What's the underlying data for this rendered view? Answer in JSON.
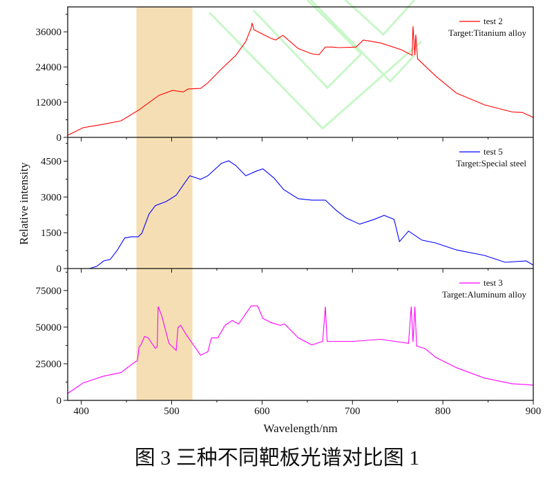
{
  "caption": "图 3  三种不同靶板光谱对比图 1",
  "chart_data": [
    {
      "type": "line",
      "ylim": [
        0,
        44500
      ],
      "yticks": [
        0,
        12000,
        24000,
        36000
      ],
      "legend": {
        "placement": "top-right",
        "label": "test 2",
        "note": "Target:Titanium alloy"
      },
      "color": "#ff0000",
      "series": [
        {
          "name": "test 2",
          "x": [
            385,
            402,
            425,
            444,
            463,
            486,
            501,
            513,
            518,
            532,
            540,
            555,
            571,
            582,
            588,
            589,
            591,
            609,
            615,
            623,
            640,
            655,
            663,
            670,
            677,
            685,
            704,
            712,
            731,
            754,
            766,
            767,
            769,
            770,
            772,
            792,
            815,
            846,
            876,
            888,
            900
          ],
          "y": [
            700,
            3300,
            4500,
            5650,
            9200,
            14350,
            16000,
            15500,
            16500,
            16700,
            18600,
            23300,
            28000,
            32700,
            37400,
            39000,
            36700,
            33900,
            33200,
            34800,
            30300,
            28500,
            28200,
            30800,
            30800,
            30600,
            30800,
            33200,
            32200,
            29900,
            28000,
            37900,
            28000,
            35000,
            26800,
            20900,
            15100,
            11100,
            8700,
            8500,
            6800
          ]
        }
      ]
    },
    {
      "type": "line",
      "ylim": [
        0,
        5500
      ],
      "yticks": [
        0,
        1500,
        3000,
        4500
      ],
      "legend": {
        "placement": "top-right",
        "label": "test 5",
        "note": "Target:Special steel"
      },
      "color": "#0000ff",
      "series": [
        {
          "name": "test 5",
          "x": [
            385,
            409,
            417,
            425,
            432,
            440,
            448,
            455,
            463,
            467,
            475,
            482,
            494,
            505,
            513,
            520,
            532,
            540,
            555,
            563,
            571,
            582,
            594,
            601,
            613,
            624,
            640,
            655,
            670,
            682,
            693,
            708,
            724,
            735,
            746,
            752,
            762,
            777,
            792,
            815,
            846,
            869,
            892,
            900
          ],
          "y": [
            0,
            0,
            90,
            320,
            380,
            780,
            1280,
            1330,
            1330,
            1480,
            2290,
            2640,
            2810,
            3070,
            3510,
            3890,
            3740,
            3890,
            4410,
            4520,
            4320,
            3890,
            4090,
            4180,
            3800,
            3310,
            2930,
            2870,
            2870,
            2440,
            2120,
            1860,
            2060,
            2230,
            2060,
            1130,
            1570,
            1190,
            1070,
            780,
            550,
            260,
            320,
            145
          ]
        }
      ]
    },
    {
      "type": "line",
      "ylim": [
        0,
        90000
      ],
      "yticks": [
        0,
        25000,
        50000,
        75000
      ],
      "legend": {
        "placement": "top-right",
        "label": "test 3",
        "note": "Target:Aluminum alloy"
      },
      "color": "#ff00ff",
      "series": [
        {
          "name": "test 3",
          "x": [
            385,
            394,
            402,
            425,
            444,
            452,
            460,
            462,
            464,
            466,
            470,
            474,
            482,
            484,
            485,
            489,
            497,
            505,
            507,
            510,
            516,
            524,
            532,
            540,
            544,
            551,
            559,
            567,
            574,
            582,
            588,
            595,
            601,
            610,
            620,
            625,
            640,
            655,
            667,
            670,
            672,
            701,
            731,
            762,
            765,
            767,
            769,
            771,
            780,
            792,
            815,
            846,
            876,
            900
          ],
          "y": [
            4700,
            8500,
            11900,
            16600,
            19000,
            22800,
            26500,
            27000,
            36500,
            37900,
            43600,
            42700,
            35500,
            36500,
            64000,
            57800,
            38900,
            34100,
            49800,
            51200,
            45000,
            37900,
            30800,
            33200,
            42700,
            42700,
            51200,
            54500,
            52100,
            59200,
            64500,
            64500,
            55900,
            53100,
            51200,
            52100,
            42700,
            37900,
            40300,
            64000,
            40300,
            40300,
            41700,
            38900,
            64000,
            39800,
            64000,
            37000,
            35500,
            29400,
            22300,
            15200,
            11400,
            10400
          ]
        }
      ]
    }
  ],
  "shared_x": {
    "label": "Wavelength/nm",
    "xlim": [
      385,
      900
    ],
    "ticks": [
      400,
      500,
      600,
      700,
      800,
      900
    ]
  },
  "shared_y": {
    "label": "Relative intensity"
  },
  "highlight_band": {
    "x": [
      461,
      523
    ],
    "color": "#f5deb3"
  },
  "watermark_color": "#c8f7c8",
  "grid": false
}
